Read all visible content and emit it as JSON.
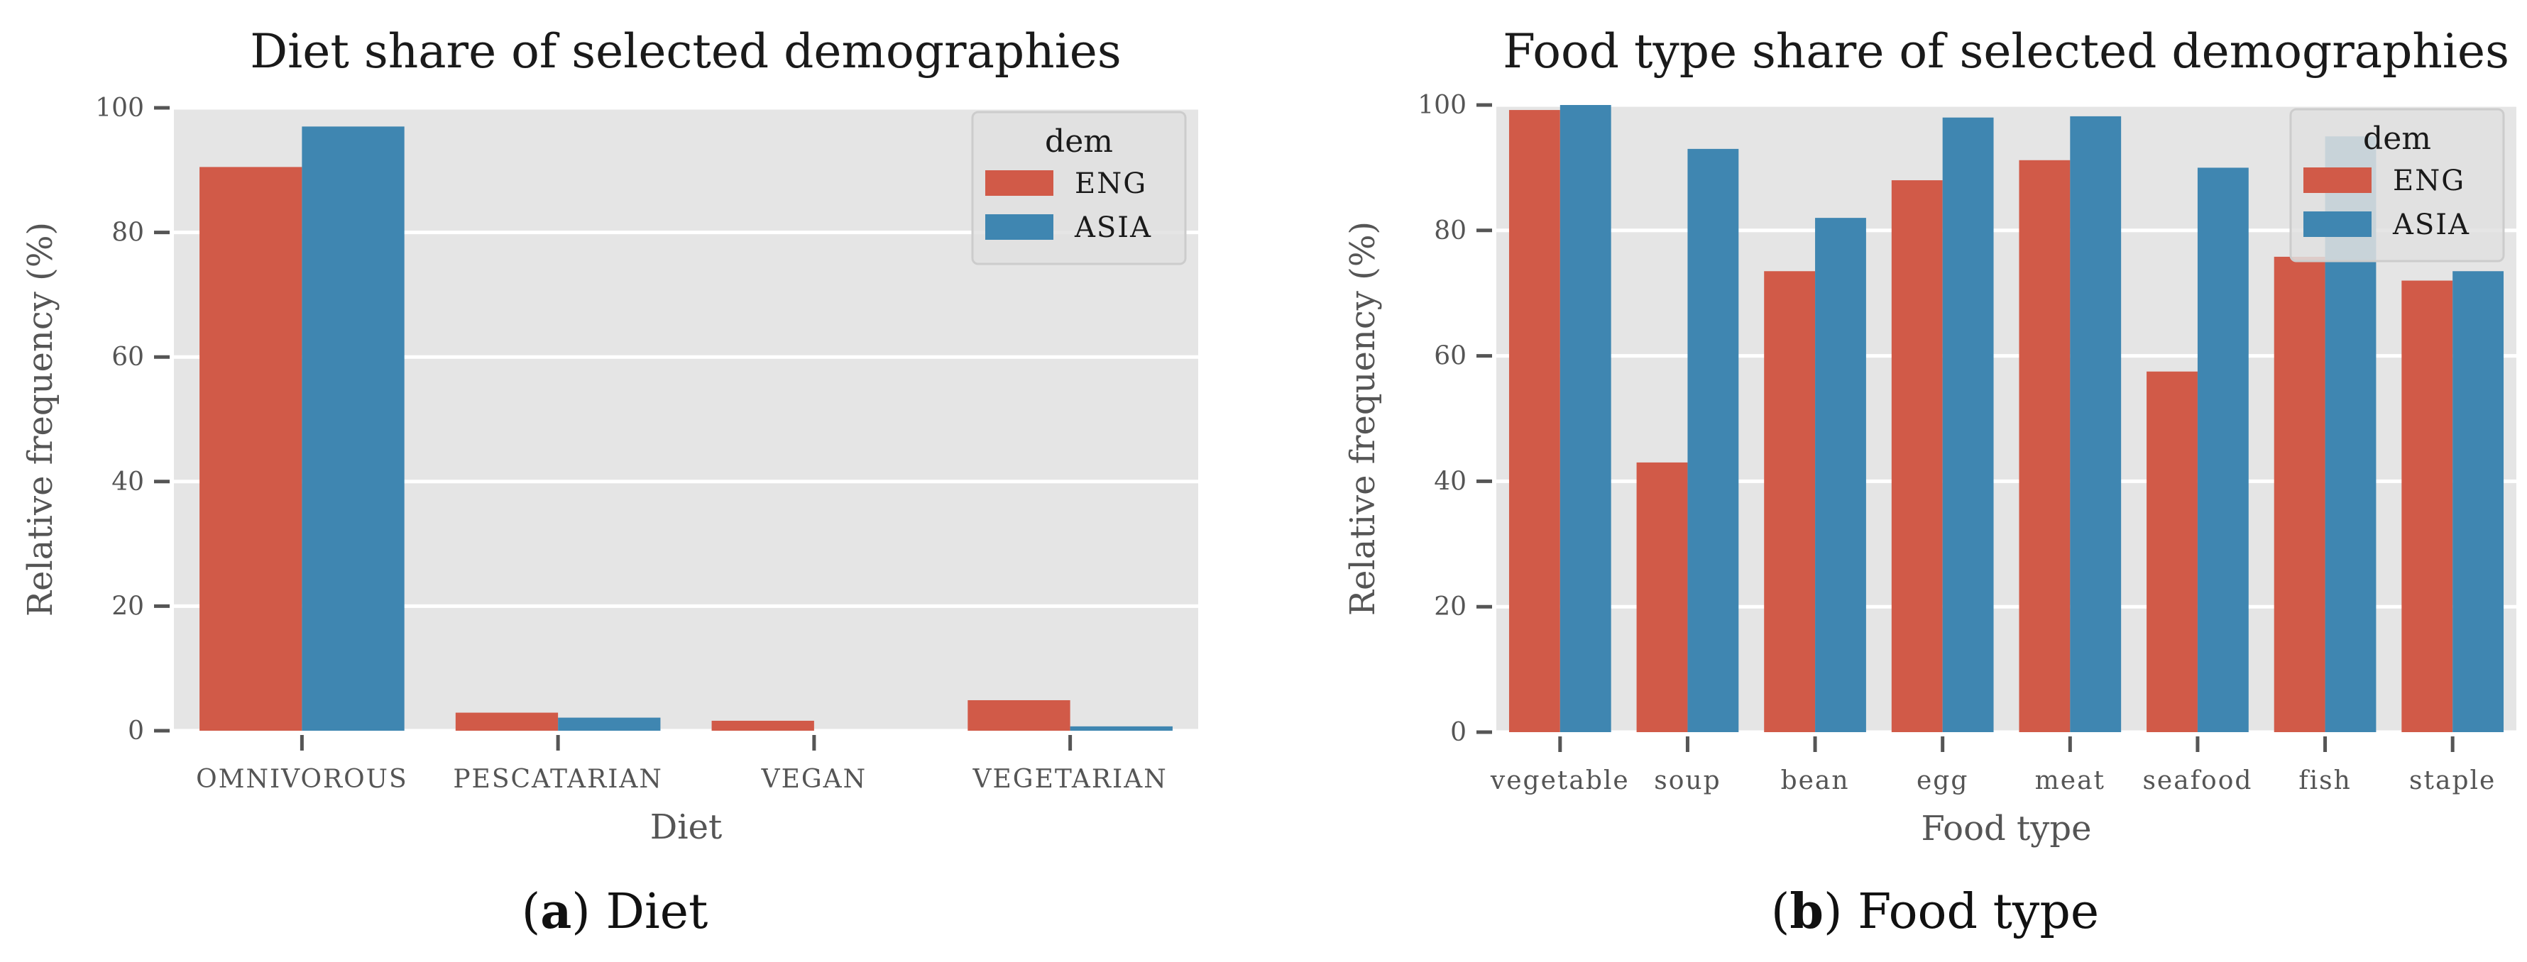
{
  "chart_data": [
    {
      "type": "bar",
      "title": "Diet share of selected demographies",
      "xlabel": "Diet",
      "ylabel": "Relative frequency (%)",
      "ylim": [
        0,
        100
      ],
      "yticks": [
        "0",
        "20",
        "40",
        "60",
        "80",
        "100"
      ],
      "categories": [
        "OMNIVOROUS",
        "PESCATARIAN",
        "VEGAN",
        "VEGETARIAN"
      ],
      "series": [
        {
          "name": "ENG",
          "values": [
            90.5,
            2.9,
            1.6,
            4.9
          ]
        },
        {
          "name": "ASIA",
          "values": [
            97.0,
            2.1,
            0.0,
            0.7
          ]
        }
      ],
      "legend": {
        "title": "dem",
        "position": "top-right"
      },
      "grid": true,
      "caption": {
        "label": "a",
        "text": "Diet"
      }
    },
    {
      "type": "bar",
      "title": "Food type share of selected demographies",
      "xlabel": "Food type",
      "ylabel": "Relative frequency (%)",
      "ylim": [
        0,
        100
      ],
      "yticks": [
        "0",
        "20",
        "40",
        "60",
        "80",
        "100"
      ],
      "categories": [
        "vegetable",
        "soup",
        "bean",
        "egg",
        "meat",
        "seafood",
        "fish",
        "staple"
      ],
      "series": [
        {
          "name": "ENG",
          "values": [
            99.2,
            43.0,
            73.5,
            88.0,
            91.2,
            57.5,
            75.8,
            72.0
          ]
        },
        {
          "name": "ASIA",
          "values": [
            100.0,
            93.0,
            82.0,
            98.0,
            98.2,
            90.0,
            95.0,
            73.5
          ]
        }
      ],
      "legend": {
        "title": "dem",
        "position": "top-right"
      },
      "grid": true,
      "caption": {
        "label": "b",
        "text": "Food type"
      }
    }
  ],
  "colors": {
    "ENG": "#d15a48",
    "ASIA": "#3f86b1",
    "panel_bg": "#e5e5e5",
    "grid": "#ffffff",
    "tick": "#555555",
    "legend_bg": "#e0e0e0",
    "legend_border": "#cccccc"
  }
}
